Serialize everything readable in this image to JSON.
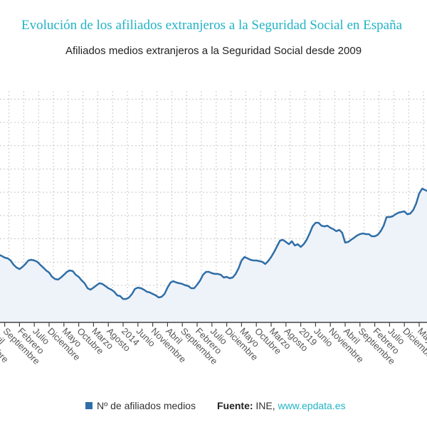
{
  "header": {
    "title": "Evolución de los afiliados extranjeros a la Seguridad Social en España",
    "subtitle": "Afiliados medios extranjeros a la Seguridad Social desde 2009"
  },
  "legend": {
    "series_label": "Nº de afiliados medios",
    "source_label": "Fuente:",
    "source_text": "INE,",
    "source_link": "www.epdata.es"
  },
  "colors": {
    "title": "#22b3c5",
    "line": "#2f6ea6",
    "area": "#eef3f9",
    "link": "#22b3c5"
  },
  "chart_data": {
    "type": "area",
    "title": "Afiliados medios extranjeros a la Seguridad Social desde 2009",
    "xlabel": "",
    "ylabel": "",
    "grid": true,
    "legend_position": "bottom",
    "ylim": [
      1300000,
      3300000
    ],
    "y_gridlines": [
      1400000,
      1600000,
      1800000,
      2000000,
      2200000,
      2400000,
      2600000,
      2800000,
      3000000,
      3200000
    ],
    "x_ticks": [
      {
        "date": "2009-11",
        "label": "Noviembre"
      },
      {
        "date": "2010-04",
        "label": "Abril"
      },
      {
        "date": "2010-09",
        "label": "Septiembre"
      },
      {
        "date": "2011-02",
        "label": "Febrero"
      },
      {
        "date": "2011-07",
        "label": "Julio"
      },
      {
        "date": "2011-12",
        "label": "Diciembre"
      },
      {
        "date": "2012-05",
        "label": "Mayo"
      },
      {
        "date": "2012-10",
        "label": "Octubre"
      },
      {
        "date": "2013-03",
        "label": "Marzo"
      },
      {
        "date": "2013-08",
        "label": "Agosto"
      },
      {
        "date": "2014-01",
        "label": "2014"
      },
      {
        "date": "2014-06",
        "label": "Junio"
      },
      {
        "date": "2014-11",
        "label": "Noviembre"
      },
      {
        "date": "2015-04",
        "label": "Abril"
      },
      {
        "date": "2015-09",
        "label": "Septiembre"
      },
      {
        "date": "2016-02",
        "label": "Febrero"
      },
      {
        "date": "2016-07",
        "label": "Julio"
      },
      {
        "date": "2016-12",
        "label": "Diciembre"
      },
      {
        "date": "2017-05",
        "label": "Mayo"
      },
      {
        "date": "2017-10",
        "label": "Octubre"
      },
      {
        "date": "2018-03",
        "label": "Marzo"
      },
      {
        "date": "2018-08",
        "label": "Agosto"
      },
      {
        "date": "2019-01",
        "label": "2019"
      },
      {
        "date": "2019-06",
        "label": "Junio"
      },
      {
        "date": "2019-11",
        "label": "Noviembre"
      },
      {
        "date": "2020-04",
        "label": "Abril"
      },
      {
        "date": "2020-09",
        "label": "Septiembre"
      },
      {
        "date": "2021-02",
        "label": "Febrero"
      },
      {
        "date": "2021-07",
        "label": "Julio"
      },
      {
        "date": "2021-12",
        "label": "Diciembre"
      },
      {
        "date": "2022-05",
        "label": "Mayo"
      }
    ],
    "series": [
      {
        "name": "Nº de afiliados medios",
        "x": [
          "2010-07",
          "2010-08",
          "2010-09",
          "2010-10",
          "2010-11",
          "2010-12",
          "2011-01",
          "2011-02",
          "2011-03",
          "2011-04",
          "2011-05",
          "2011-06",
          "2011-07",
          "2011-08",
          "2011-09",
          "2011-10",
          "2011-11",
          "2011-12",
          "2012-01",
          "2012-02",
          "2012-03",
          "2012-04",
          "2012-05",
          "2012-06",
          "2012-07",
          "2012-08",
          "2012-09",
          "2012-10",
          "2012-11",
          "2012-12",
          "2013-01",
          "2013-02",
          "2013-03",
          "2013-04",
          "2013-05",
          "2013-06",
          "2013-07",
          "2013-08",
          "2013-09",
          "2013-10",
          "2013-11",
          "2013-12",
          "2014-01",
          "2014-02",
          "2014-03",
          "2014-04",
          "2014-05",
          "2014-06",
          "2014-07",
          "2014-08",
          "2014-09",
          "2014-10",
          "2014-11",
          "2014-12",
          "2015-01",
          "2015-02",
          "2015-03",
          "2015-04",
          "2015-05",
          "2015-06",
          "2015-07",
          "2015-08",
          "2015-09",
          "2015-10",
          "2015-11",
          "2015-12",
          "2016-01",
          "2016-02",
          "2016-03",
          "2016-04",
          "2016-05",
          "2016-06",
          "2016-07",
          "2016-08",
          "2016-09",
          "2016-10",
          "2016-11",
          "2016-12",
          "2017-01",
          "2017-02",
          "2017-03",
          "2017-04",
          "2017-05",
          "2017-06",
          "2017-07",
          "2017-08",
          "2017-09",
          "2017-10",
          "2017-11",
          "2017-12",
          "2018-01",
          "2018-02",
          "2018-03",
          "2018-04",
          "2018-05",
          "2018-06",
          "2018-07",
          "2018-08",
          "2018-09",
          "2018-10",
          "2018-11",
          "2018-12",
          "2019-01",
          "2019-02",
          "2019-03",
          "2019-04",
          "2019-05",
          "2019-06",
          "2019-07",
          "2019-08",
          "2019-09",
          "2019-10",
          "2019-11",
          "2019-12",
          "2020-01",
          "2020-02",
          "2020-03",
          "2020-04",
          "2020-05",
          "2020-06",
          "2020-07",
          "2020-08",
          "2020-09",
          "2020-10",
          "2020-11",
          "2020-12",
          "2021-01",
          "2021-02",
          "2021-03",
          "2021-04",
          "2021-05",
          "2021-06",
          "2021-07",
          "2021-08",
          "2021-09",
          "2021-10",
          "2021-11",
          "2021-12",
          "2022-01",
          "2022-02",
          "2022-03",
          "2022-04",
          "2022-05",
          "2022-06",
          "2022-07",
          "2022-08"
        ],
        "values": [
          1863000,
          1853000,
          1838000,
          1832000,
          1814000,
          1777000,
          1753000,
          1740000,
          1759000,
          1783000,
          1814000,
          1820000,
          1814000,
          1802000,
          1777000,
          1753000,
          1728000,
          1710000,
          1673000,
          1655000,
          1649000,
          1667000,
          1691000,
          1716000,
          1728000,
          1722000,
          1691000,
          1673000,
          1642000,
          1618000,
          1575000,
          1563000,
          1581000,
          1600000,
          1618000,
          1612000,
          1594000,
          1575000,
          1563000,
          1545000,
          1514000,
          1508000,
          1483000,
          1483000,
          1496000,
          1526000,
          1569000,
          1581000,
          1575000,
          1563000,
          1545000,
          1539000,
          1526000,
          1514000,
          1496000,
          1502000,
          1526000,
          1581000,
          1624000,
          1636000,
          1624000,
          1618000,
          1612000,
          1600000,
          1594000,
          1575000,
          1575000,
          1606000,
          1642000,
          1691000,
          1716000,
          1716000,
          1704000,
          1698000,
          1698000,
          1691000,
          1667000,
          1673000,
          1661000,
          1667000,
          1698000,
          1746000,
          1814000,
          1844000,
          1832000,
          1820000,
          1814000,
          1814000,
          1808000,
          1802000,
          1783000,
          1808000,
          1844000,
          1887000,
          1936000,
          1985000,
          1991000,
          1973000,
          1954000,
          1979000,
          1942000,
          1954000,
          1930000,
          1954000,
          1991000,
          2046000,
          2107000,
          2138000,
          2138000,
          2113000,
          2107000,
          2113000,
          2095000,
          2083000,
          2065000,
          2077000,
          2052000,
          1967000,
          1973000,
          1991000,
          2009000,
          2028000,
          2040000,
          2046000,
          2040000,
          2040000,
          2022000,
          2022000,
          2034000,
          2065000,
          2113000,
          2187000,
          2187000,
          2193000,
          2211000,
          2224000,
          2230000,
          2236000,
          2211000,
          2217000,
          2248000,
          2303000,
          2389000,
          2431000,
          2419000,
          2407000
        ]
      }
    ]
  }
}
